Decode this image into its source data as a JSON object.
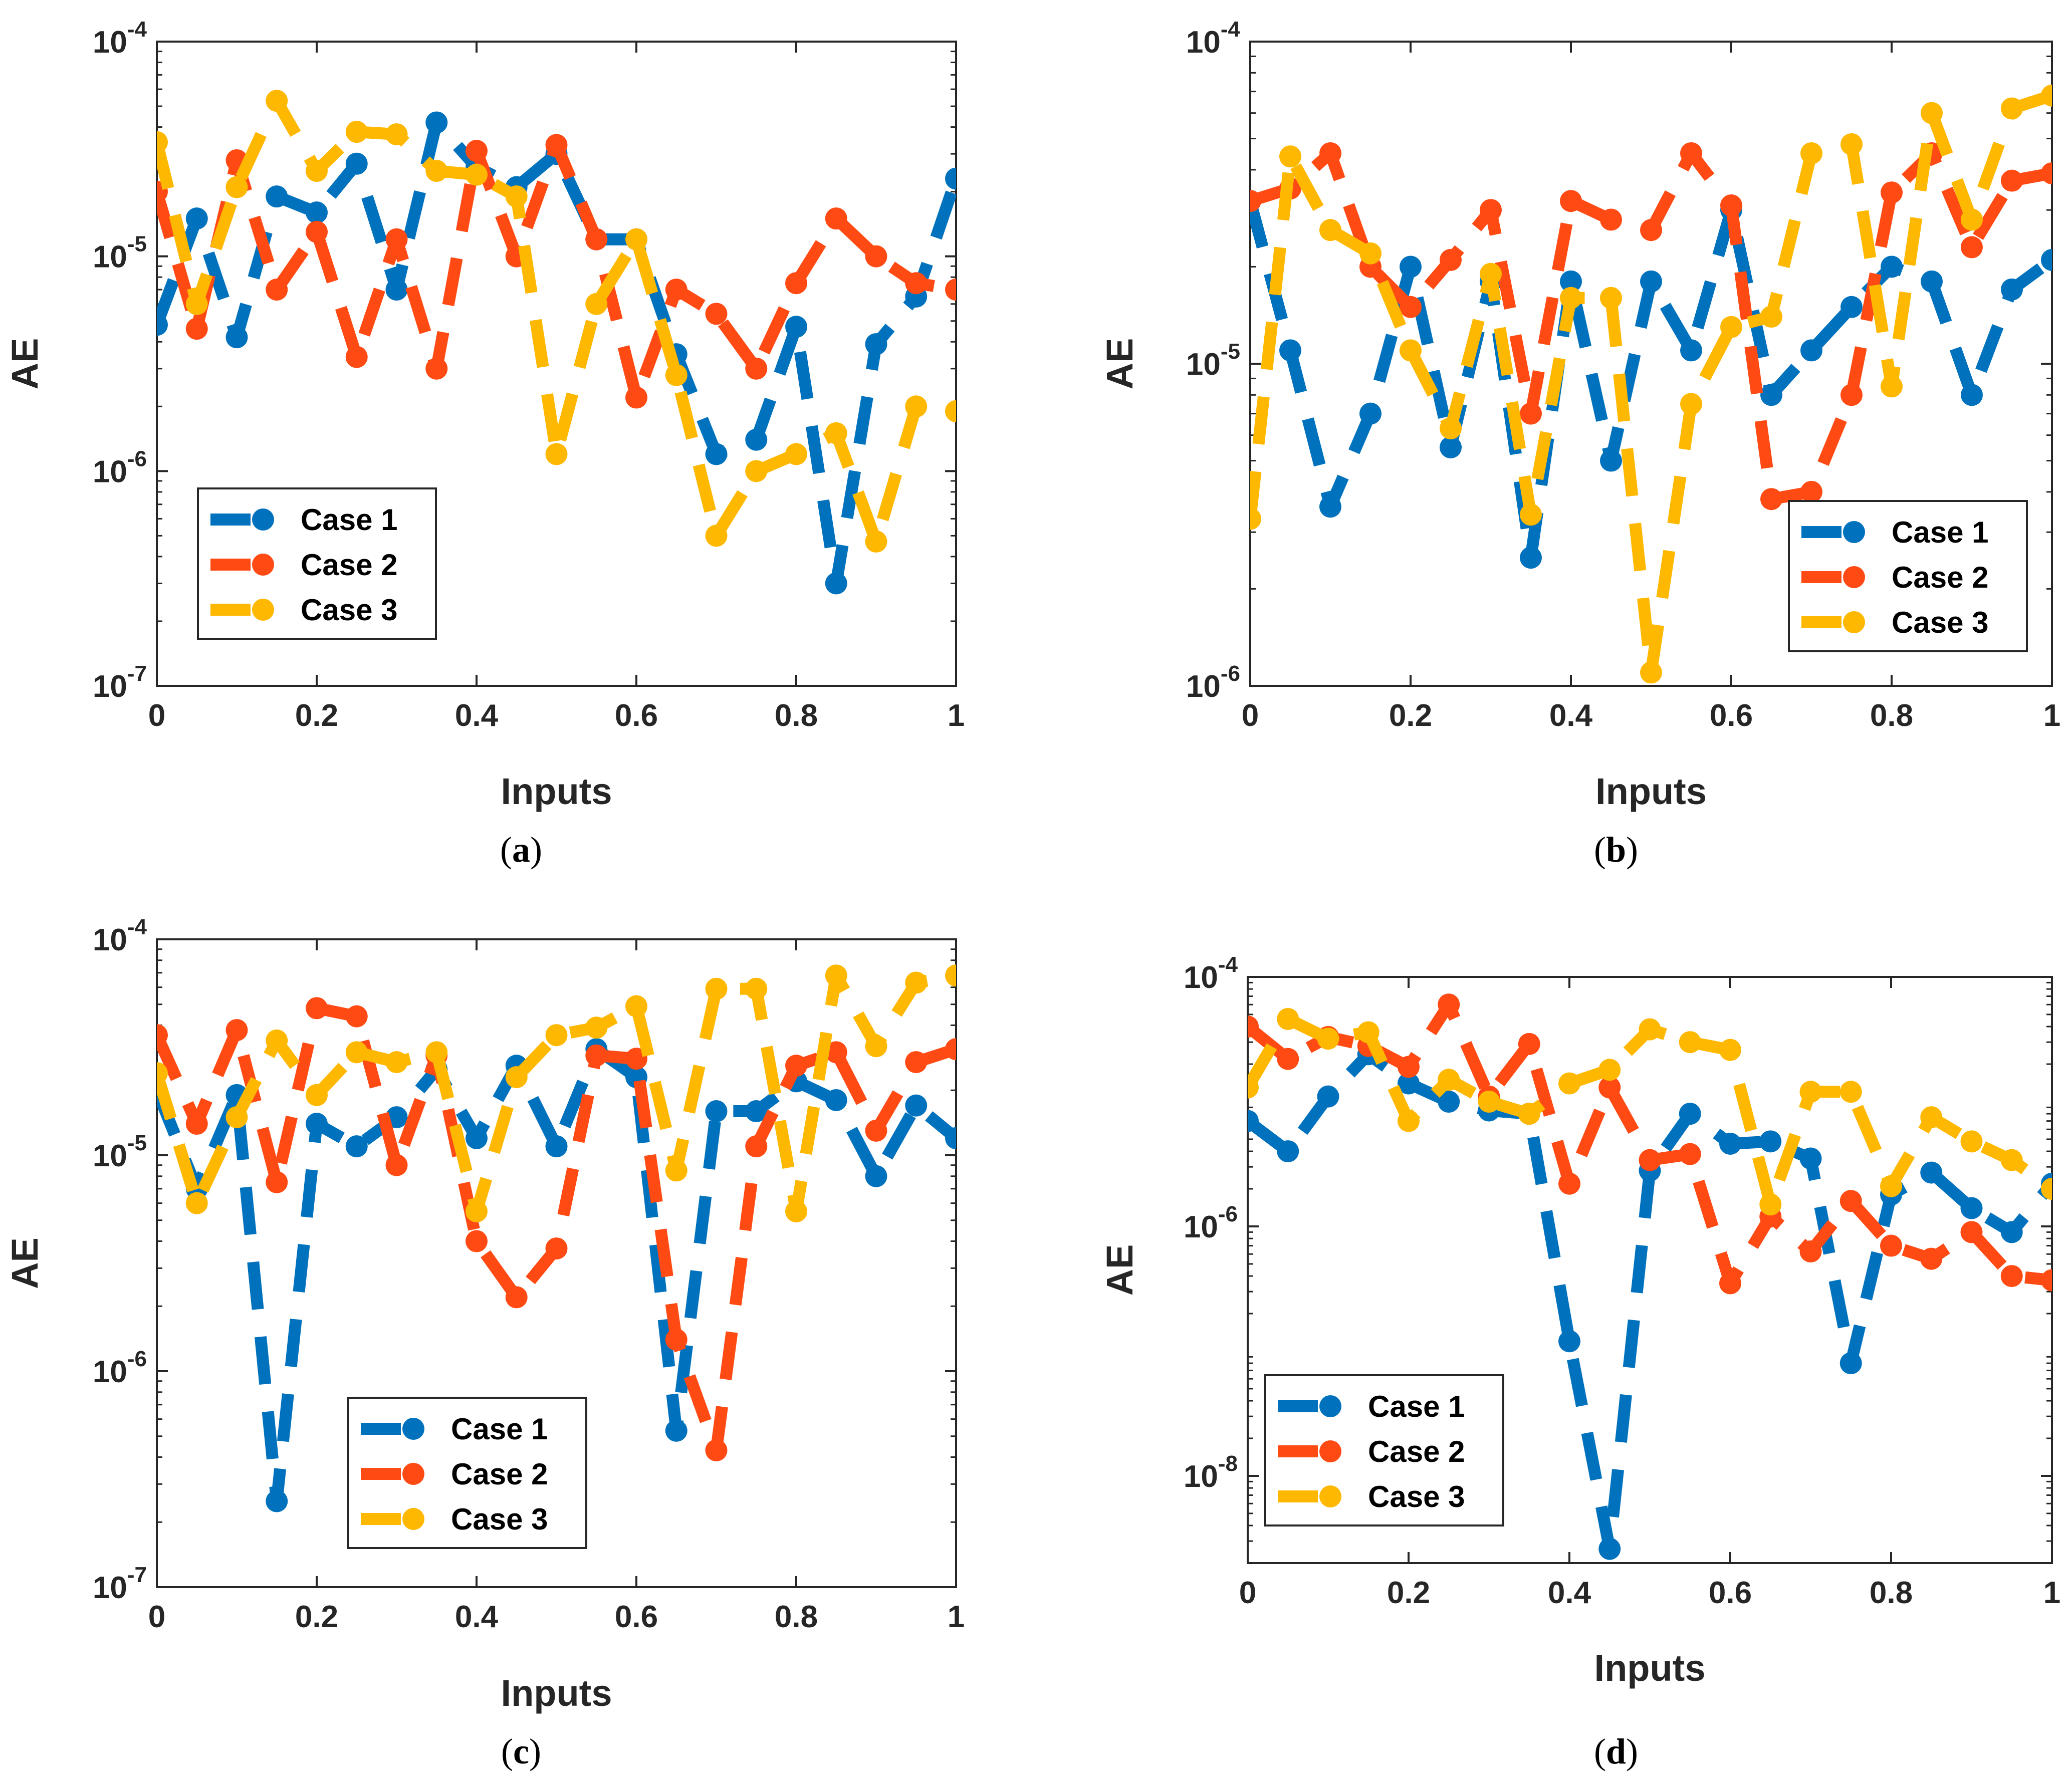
{
  "series_colors": [
    "#0072BD",
    "#FF4A14",
    "#FFB800"
  ],
  "chart_data": [
    {
      "panel": "a",
      "caption": "(a)",
      "type": "line",
      "yscale": "log",
      "xlabel": "Inputs",
      "ylabel": "AE",
      "xlim": [
        0,
        1
      ],
      "ylim": [
        1e-07,
        0.0001
      ],
      "xticks": [
        "0",
        "0.2",
        "0.4",
        "0.6",
        "0.8",
        "1"
      ],
      "yticks": [
        {
          "exp": "-7"
        },
        {
          "exp": "-6"
        },
        {
          "exp": "-5"
        },
        {
          "exp": "-4"
        }
      ],
      "legend": {
        "location": "lower-left",
        "entries": [
          "Case 1",
          "Case 2",
          "Case 3"
        ]
      },
      "x": [
        0,
        0.05,
        0.1,
        0.15,
        0.2,
        0.25,
        0.3,
        0.35,
        0.4,
        0.45,
        0.5,
        0.55,
        0.6,
        0.65,
        0.7,
        0.75,
        0.8,
        0.85,
        0.9,
        0.95,
        1
      ],
      "series": [
        {
          "name": "Case 1",
          "values": [
            4.8e-06,
            1.5e-05,
            4.2e-06,
            1.9e-05,
            1.6e-05,
            2.7e-05,
            7e-06,
            4.2e-05,
            2.6e-05,
            2.1e-05,
            3e-05,
            1.2e-05,
            1.2e-05,
            3.5e-06,
            1.2e-06,
            1.4e-06,
            4.7e-06,
            3e-07,
            3.9e-06,
            6.5e-06,
            2.3e-05
          ]
        },
        {
          "name": "Case 2",
          "values": [
            2e-05,
            4.6e-06,
            2.8e-05,
            7e-06,
            1.3e-05,
            3.4e-06,
            1.2e-05,
            3e-06,
            3.1e-05,
            1e-05,
            3.3e-05,
            1.2e-05,
            2.2e-06,
            7e-06,
            5.4e-06,
            3e-06,
            7.5e-06,
            1.5e-05,
            1e-05,
            7.5e-06,
            7e-06
          ]
        },
        {
          "name": "Case 3",
          "values": [
            3.4e-05,
            6e-06,
            2.1e-05,
            5.3e-05,
            2.5e-05,
            3.8e-05,
            3.7e-05,
            2.5e-05,
            2.4e-05,
            1.9e-05,
            1.2e-06,
            6e-06,
            1.2e-05,
            2.8e-06,
            5e-07,
            1e-06,
            1.2e-06,
            1.5e-06,
            4.7e-07,
            2e-06,
            1.9e-06
          ]
        }
      ]
    },
    {
      "panel": "b",
      "caption": "(b)",
      "type": "line",
      "yscale": "log",
      "xlabel": "Inputs",
      "ylabel": "AE",
      "xlim": [
        0,
        1
      ],
      "ylim": [
        1e-06,
        0.0001
      ],
      "xticks": [
        "0",
        "0.2",
        "0.4",
        "0.6",
        "0.8",
        "1"
      ],
      "yticks": [
        {
          "exp": "-6"
        },
        {
          "exp": "-5"
        },
        {
          "exp": "-4"
        }
      ],
      "legend": {
        "location": "lower-right",
        "entries": [
          "Case 1",
          "Case 2",
          "Case 3"
        ]
      },
      "x": [
        0,
        0.05,
        0.1,
        0.15,
        0.2,
        0.25,
        0.3,
        0.35,
        0.4,
        0.45,
        0.5,
        0.55,
        0.6,
        0.65,
        0.7,
        0.75,
        0.8,
        0.85,
        0.9,
        0.95,
        1
      ],
      "series": [
        {
          "name": "Case 1",
          "values": [
            3.2e-05,
            1.1e-05,
            3.6e-06,
            7e-06,
            2e-05,
            5.5e-06,
            1.8e-05,
            2.5e-06,
            1.8e-05,
            5e-06,
            1.8e-05,
            1.1e-05,
            3e-05,
            8e-06,
            1.1e-05,
            1.5e-05,
            2e-05,
            1.8e-05,
            8e-06,
            1.7e-05,
            2.1e-05
          ]
        },
        {
          "name": "Case 2",
          "values": [
            3.2e-05,
            3.5e-05,
            4.5e-05,
            2e-05,
            1.5e-05,
            2.1e-05,
            3e-05,
            7e-06,
            3.2e-05,
            2.8e-05,
            2.6e-05,
            4.5e-05,
            3.1e-05,
            3.8e-06,
            4e-06,
            8e-06,
            3.4e-05,
            4.5e-05,
            2.3e-05,
            3.7e-05,
            3.9e-05
          ]
        },
        {
          "name": "Case 3",
          "values": [
            3.3e-06,
            4.4e-05,
            2.6e-05,
            2.2e-05,
            1.1e-05,
            6.3e-06,
            1.9e-05,
            3.4e-06,
            1.6e-05,
            1.6e-05,
            1.1e-06,
            7.5e-06,
            1.3e-05,
            1.4e-05,
            4.5e-05,
            4.8e-05,
            8.5e-06,
            6e-05,
            2.8e-05,
            6.2e-05,
            6.8e-05
          ]
        }
      ]
    },
    {
      "panel": "c",
      "caption": "(c)",
      "type": "line",
      "yscale": "log",
      "xlabel": "Inputs",
      "ylabel": "AE",
      "xlim": [
        0,
        1
      ],
      "ylim": [
        1e-07,
        0.0001
      ],
      "xticks": [
        "0",
        "0.2",
        "0.4",
        "0.6",
        "0.8",
        "1"
      ],
      "yticks": [
        {
          "exp": "-7"
        },
        {
          "exp": "-6"
        },
        {
          "exp": "-5"
        },
        {
          "exp": "-4"
        }
      ],
      "legend": {
        "location": "lower-center",
        "entries": [
          "Case 1",
          "Case 2",
          "Case 3"
        ]
      },
      "x": [
        0,
        0.05,
        0.1,
        0.15,
        0.2,
        0.25,
        0.3,
        0.35,
        0.4,
        0.45,
        0.5,
        0.55,
        0.6,
        0.65,
        0.7,
        0.75,
        0.8,
        0.85,
        0.9,
        0.95,
        1
      ],
      "series": [
        {
          "name": "Case 1",
          "values": [
            2e-05,
            7e-06,
            1.9e-05,
            2.5e-07,
            1.4e-05,
            1.1e-05,
            1.5e-05,
            2.5e-05,
            1.2e-05,
            2.6e-05,
            1.1e-05,
            3.1e-05,
            2.3e-05,
            5.3e-07,
            1.6e-05,
            1.6e-05,
            2.2e-05,
            1.8e-05,
            8e-06,
            1.7e-05,
            1.2e-05
          ]
        },
        {
          "name": "Case 2",
          "values": [
            3.6e-05,
            1.4e-05,
            3.8e-05,
            7.5e-06,
            4.8e-05,
            4.4e-05,
            9e-06,
            2.9e-05,
            4e-06,
            2.2e-06,
            3.7e-06,
            2.9e-05,
            2.8e-05,
            1.4e-06,
            4.3e-07,
            1.1e-05,
            2.6e-05,
            3e-05,
            1.3e-05,
            2.7e-05,
            3.1e-05
          ]
        },
        {
          "name": "Case 3",
          "values": [
            2.4e-05,
            6e-06,
            1.5e-05,
            3.4e-05,
            1.9e-05,
            3e-05,
            2.7e-05,
            3e-05,
            5.5e-06,
            2.3e-05,
            3.6e-05,
            3.9e-05,
            4.9e-05,
            8.5e-06,
            5.9e-05,
            5.9e-05,
            5.5e-06,
            6.8e-05,
            3.2e-05,
            6.3e-05,
            6.8e-05
          ]
        }
      ]
    },
    {
      "panel": "d",
      "caption": "(d)",
      "type": "line",
      "yscale": "log",
      "xlabel": "Inputs",
      "ylabel": "AE",
      "xlim": [
        0,
        1
      ],
      "ylim": [
        2e-09,
        0.0001
      ],
      "xticks": [
        "0",
        "0.2",
        "0.4",
        "0.6",
        "0.8",
        "1"
      ],
      "yticks": [
        {
          "exp": "-8"
        },
        {
          "exp": "-6"
        },
        {
          "exp": "-4"
        }
      ],
      "legend": {
        "location": "lower-left",
        "entries": [
          "Case 1",
          "Case 2",
          "Case 3"
        ]
      },
      "x": [
        0,
        0.05,
        0.1,
        0.15,
        0.2,
        0.25,
        0.3,
        0.35,
        0.4,
        0.45,
        0.5,
        0.55,
        0.6,
        0.65,
        0.7,
        0.75,
        0.8,
        0.85,
        0.9,
        0.95,
        1
      ],
      "series": [
        {
          "name": "Case 1",
          "values": [
            7e-06,
            4e-06,
            1.1e-05,
            2.4e-05,
            1.4e-05,
            1e-05,
            8.5e-06,
            8e-06,
            1.2e-07,
            2.6e-09,
            2.8e-06,
            8e-06,
            4.6e-06,
            4.8e-06,
            3.5e-06,
            8e-08,
            1.8e-06,
            2.7e-06,
            1.4e-06,
            9e-07,
            2.2e-06
          ]
        },
        {
          "name": "Case 2",
          "values": [
            4e-05,
            2.2e-05,
            3.3e-05,
            2.8e-05,
            1.9e-05,
            6e-05,
            1.1e-05,
            2.9e-05,
            2.2e-06,
            1.3e-05,
            3.4e-06,
            3.8e-06,
            3.5e-07,
            1.2e-06,
            6.3e-07,
            1.6e-06,
            7e-07,
            5.5e-07,
            9e-07,
            4e-07,
            3.7e-07
          ]
        },
        {
          "name": "Case 3",
          "values": [
            1.3e-05,
            4.6e-05,
            3.2e-05,
            3.6e-05,
            7e-06,
            1.5e-05,
            1e-05,
            8e-06,
            1.4e-05,
            1.8e-05,
            3.8e-05,
            3e-05,
            2.6e-05,
            1.5e-06,
            1.2e-05,
            1.2e-05,
            2.1e-06,
            7.5e-06,
            4.8e-06,
            3.4e-06,
            2e-06
          ]
        }
      ]
    }
  ]
}
